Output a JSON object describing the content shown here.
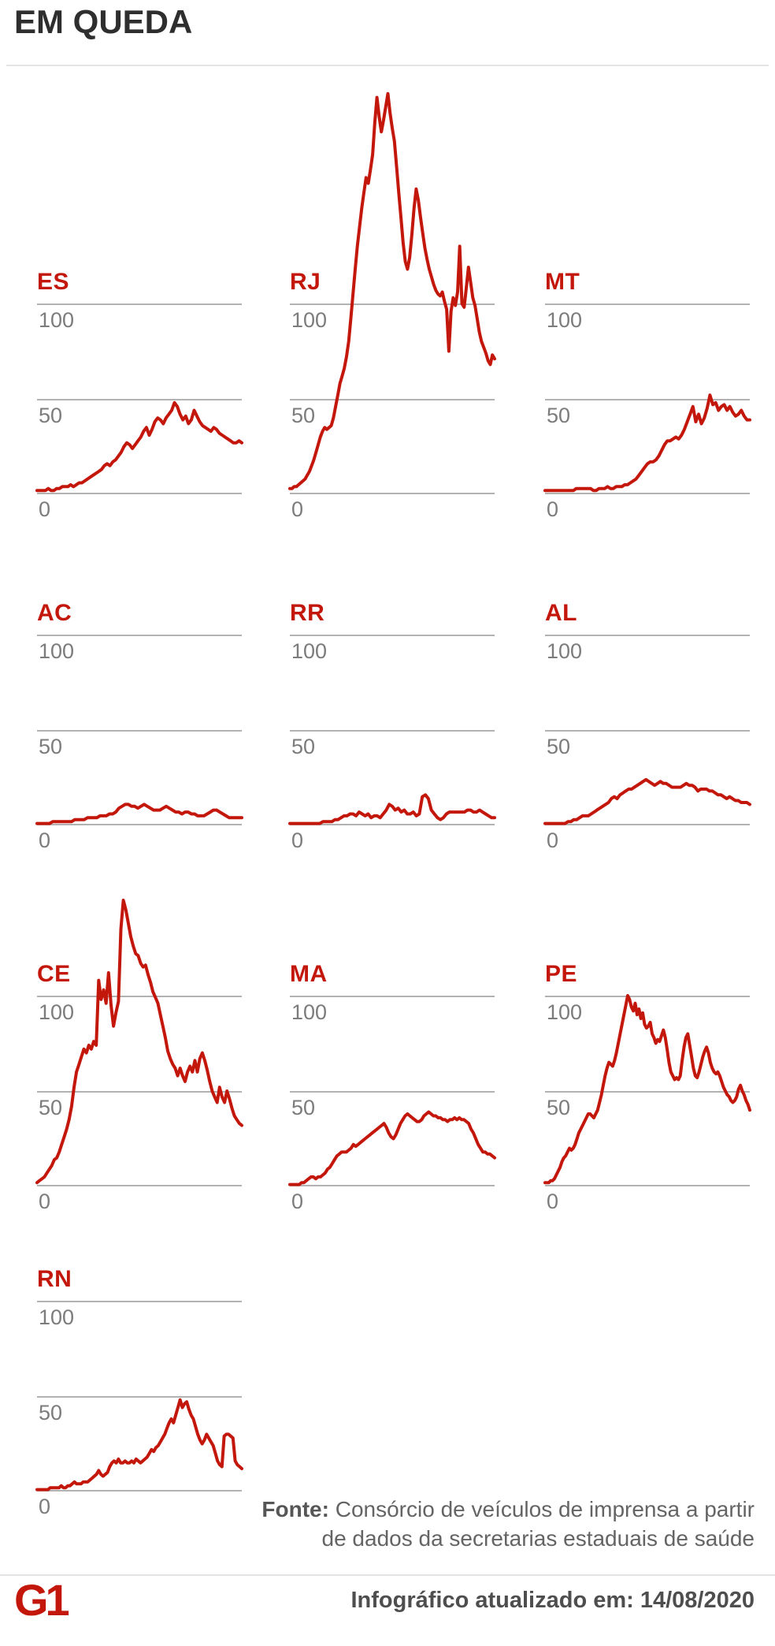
{
  "title": "EM QUEDA",
  "axis": {
    "ticks": [
      "100",
      "50",
      "0"
    ]
  },
  "footer": {
    "source_label": "Fonte:",
    "source_line1": "Consórcio de veículos de imprensa a partir",
    "source_line2": "de dados da secretarias estaduais de saúde",
    "updated_text": "Infográfico atualizado em: 14/08/2020",
    "logo_text": "G1"
  },
  "colors": {
    "red": "#c4170c",
    "gridline": "#b2b2b2",
    "tick_label": "#7c7c7c",
    "title": "#2e2e2e",
    "divider": "#e4e4e4",
    "source_text": "#646464",
    "updated_text": "#4e4e4e",
    "background": "#ffffff"
  },
  "chart_data": [
    {
      "type": "line",
      "title": "ES",
      "ylabel": "",
      "yticks": [
        100,
        50,
        0
      ],
      "ylim": [
        0,
        220
      ],
      "grid": true,
      "values": [
        2,
        2,
        2,
        2,
        3,
        2,
        2,
        3,
        3,
        4,
        4,
        4,
        5,
        4,
        5,
        6,
        6,
        7,
        8,
        9,
        10,
        11,
        12,
        13,
        15,
        16,
        15,
        17,
        18,
        20,
        22,
        25,
        27,
        26,
        24,
        26,
        28,
        30,
        33,
        35,
        31,
        34,
        38,
        40,
        39,
        37,
        40,
        42,
        44,
        48,
        46,
        42,
        39,
        41,
        37,
        39,
        44,
        41,
        38,
        36,
        35,
        34,
        33,
        35,
        34,
        32,
        31,
        30,
        29,
        28,
        27,
        27,
        28,
        27
      ]
    },
    {
      "type": "line",
      "title": "RJ",
      "ylabel": "",
      "yticks": [
        100,
        50,
        0
      ],
      "ylim": [
        0,
        220
      ],
      "grid": true,
      "values": [
        3,
        3,
        4,
        4,
        5,
        6,
        7,
        8,
        10,
        12,
        15,
        18,
        22,
        26,
        30,
        33,
        35,
        34,
        35,
        36,
        40,
        46,
        52,
        58,
        62,
        66,
        72,
        80,
        92,
        105,
        118,
        130,
        140,
        150,
        158,
        166,
        163,
        170,
        178,
        195,
        208,
        198,
        190,
        196,
        203,
        210,
        200,
        192,
        185,
        172,
        158,
        145,
        132,
        122,
        118,
        124,
        136,
        150,
        160,
        154,
        145,
        137,
        129,
        123,
        118,
        114,
        110,
        107,
        105,
        104,
        106,
        101,
        97,
        75,
        96,
        103,
        99,
        106,
        130,
        100,
        98,
        108,
        119,
        111,
        103,
        99,
        92,
        85,
        80,
        77,
        74,
        70,
        68,
        73,
        71
      ]
    },
    {
      "type": "line",
      "title": "MT",
      "ylabel": "",
      "yticks": [
        100,
        50,
        0
      ],
      "ylim": [
        0,
        220
      ],
      "grid": true,
      "values": [
        2,
        2,
        2,
        2,
        2,
        2,
        2,
        2,
        2,
        2,
        2,
        3,
        3,
        3,
        3,
        3,
        3,
        2,
        2,
        3,
        3,
        3,
        4,
        3,
        3,
        4,
        4,
        4,
        5,
        5,
        6,
        7,
        8,
        10,
        12,
        14,
        16,
        17,
        17,
        18,
        20,
        23,
        26,
        28,
        28,
        29,
        30,
        29,
        31,
        34,
        38,
        42,
        46,
        38,
        42,
        37,
        40,
        45,
        52,
        47,
        48,
        44,
        46,
        47,
        44,
        46,
        43,
        41,
        42,
        44,
        41,
        39,
        39
      ]
    },
    {
      "type": "line",
      "title": "AC",
      "ylabel": "",
      "yticks": [
        100,
        50,
        0
      ],
      "ylim": [
        0,
        220
      ],
      "grid": true,
      "values": [
        1,
        1,
        1,
        1,
        1,
        2,
        2,
        2,
        2,
        2,
        2,
        2,
        3,
        3,
        3,
        3,
        4,
        4,
        4,
        4,
        5,
        5,
        5,
        6,
        6,
        7,
        9,
        10,
        11,
        11,
        10,
        10,
        9,
        10,
        11,
        10,
        9,
        8,
        8,
        8,
        9,
        10,
        9,
        8,
        7,
        7,
        6,
        7,
        7,
        6,
        6,
        5,
        5,
        5,
        6,
        7,
        8,
        8,
        7,
        6,
        5,
        4,
        4,
        4,
        4,
        4
      ]
    },
    {
      "type": "line",
      "title": "RR",
      "ylabel": "",
      "yticks": [
        100,
        50,
        0
      ],
      "ylim": [
        0,
        220
      ],
      "grid": true,
      "values": [
        1,
        1,
        1,
        1,
        1,
        1,
        1,
        1,
        1,
        1,
        1,
        2,
        2,
        2,
        2,
        3,
        3,
        4,
        5,
        5,
        6,
        6,
        5,
        7,
        6,
        5,
        6,
        4,
        5,
        5,
        4,
        6,
        8,
        11,
        10,
        8,
        9,
        7,
        8,
        6,
        6,
        7,
        5,
        6,
        15,
        16,
        14,
        8,
        6,
        4,
        3,
        4,
        6,
        7,
        7,
        7,
        7,
        7,
        7,
        8,
        8,
        7,
        7,
        8,
        7,
        6,
        5,
        4,
        4
      ]
    },
    {
      "type": "line",
      "title": "AL",
      "ylabel": "",
      "yticks": [
        100,
        50,
        0
      ],
      "ylim": [
        0,
        220
      ],
      "grid": true,
      "values": [
        1,
        1,
        1,
        1,
        1,
        1,
        1,
        1,
        2,
        2,
        3,
        3,
        4,
        5,
        5,
        5,
        6,
        7,
        8,
        9,
        10,
        11,
        12,
        14,
        15,
        14,
        16,
        17,
        18,
        19,
        19,
        20,
        21,
        22,
        23,
        24,
        23,
        22,
        21,
        22,
        23,
        22,
        22,
        21,
        20,
        20,
        20,
        20,
        21,
        22,
        21,
        21,
        20,
        18,
        19,
        19,
        19,
        18,
        18,
        17,
        16,
        16,
        15,
        14,
        15,
        14,
        13,
        13,
        12,
        12,
        12,
        11
      ]
    },
    {
      "type": "line",
      "title": "CE",
      "ylabel": "",
      "yticks": [
        100,
        50,
        0
      ],
      "ylim": [
        0,
        220
      ],
      "grid": true,
      "values": [
        2,
        3,
        4,
        5,
        7,
        9,
        11,
        14,
        15,
        18,
        22,
        26,
        30,
        35,
        42,
        52,
        60,
        64,
        68,
        72,
        70,
        74,
        72,
        76,
        74,
        108,
        98,
        103,
        96,
        112,
        95,
        84,
        91,
        97,
        135,
        150,
        145,
        138,
        131,
        126,
        122,
        121,
        117,
        115,
        116,
        111,
        107,
        102,
        99,
        96,
        90,
        84,
        78,
        71,
        67,
        64,
        62,
        58,
        62,
        58,
        55,
        60,
        63,
        60,
        66,
        60,
        67,
        70,
        66,
        61,
        55,
        50,
        47,
        44,
        52,
        47,
        44,
        50,
        46,
        41,
        37,
        35,
        33,
        32
      ]
    },
    {
      "type": "line",
      "title": "MA",
      "ylabel": "",
      "yticks": [
        100,
        50,
        0
      ],
      "ylim": [
        0,
        220
      ],
      "grid": true,
      "values": [
        1,
        1,
        1,
        1,
        1,
        2,
        2,
        3,
        4,
        5,
        5,
        4,
        5,
        5,
        6,
        7,
        9,
        10,
        12,
        14,
        16,
        17,
        18,
        18,
        18,
        19,
        20,
        22,
        21,
        22,
        23,
        24,
        25,
        26,
        27,
        28,
        29,
        30,
        31,
        32,
        33,
        31,
        28,
        26,
        25,
        27,
        30,
        33,
        35,
        37,
        38,
        37,
        36,
        35,
        34,
        34,
        35,
        37,
        38,
        39,
        38,
        37,
        37,
        36,
        36,
        35,
        35,
        34,
        35,
        35,
        36,
        35,
        36,
        35,
        35,
        34,
        33,
        30,
        28,
        25,
        22,
        20,
        18,
        18,
        17,
        17,
        16,
        15
      ]
    },
    {
      "type": "line",
      "title": "PE",
      "ylabel": "",
      "yticks": [
        100,
        50,
        0
      ],
      "ylim": [
        0,
        220
      ],
      "grid": true,
      "values": [
        2,
        2,
        2,
        3,
        3,
        4,
        6,
        8,
        10,
        13,
        15,
        16,
        18,
        20,
        19,
        20,
        22,
        25,
        28,
        30,
        32,
        34,
        36,
        38,
        38,
        37,
        36,
        38,
        40,
        44,
        48,
        53,
        58,
        62,
        65,
        64,
        63,
        66,
        70,
        75,
        80,
        85,
        90,
        95,
        100,
        98,
        94,
        92,
        96,
        90,
        93,
        88,
        91,
        85,
        83,
        84,
        86,
        80,
        78,
        75,
        77,
        76,
        79,
        82,
        78,
        72,
        65,
        60,
        58,
        56,
        57,
        56,
        58,
        66,
        73,
        78,
        80,
        74,
        68,
        62,
        58,
        57,
        60,
        64,
        68,
        71,
        73,
        70,
        65,
        62,
        60,
        59,
        60,
        58,
        55,
        52,
        50,
        48,
        47,
        45,
        44,
        45,
        47,
        51,
        53,
        50,
        48,
        45,
        43,
        40
      ]
    },
    {
      "type": "line",
      "title": "RN",
      "ylabel": "",
      "yticks": [
        100,
        50,
        0
      ],
      "ylim": [
        0,
        220
      ],
      "grid": true,
      "values": [
        1,
        1,
        1,
        1,
        1,
        1,
        2,
        2,
        2,
        2,
        2,
        3,
        2,
        2,
        3,
        3,
        4,
        5,
        4,
        4,
        4,
        5,
        5,
        5,
        6,
        7,
        8,
        9,
        11,
        9,
        8,
        9,
        10,
        13,
        15,
        16,
        15,
        17,
        15,
        15,
        16,
        15,
        15,
        16,
        15,
        17,
        16,
        15,
        16,
        17,
        18,
        20,
        22,
        21,
        23,
        24,
        26,
        28,
        30,
        33,
        36,
        38,
        36,
        40,
        44,
        48,
        44,
        46,
        47,
        43,
        40,
        38,
        34,
        30,
        27,
        25,
        27,
        30,
        28,
        26,
        24,
        20,
        16,
        14,
        13,
        29,
        30,
        30,
        29,
        28,
        16,
        14,
        13,
        12
      ]
    }
  ]
}
